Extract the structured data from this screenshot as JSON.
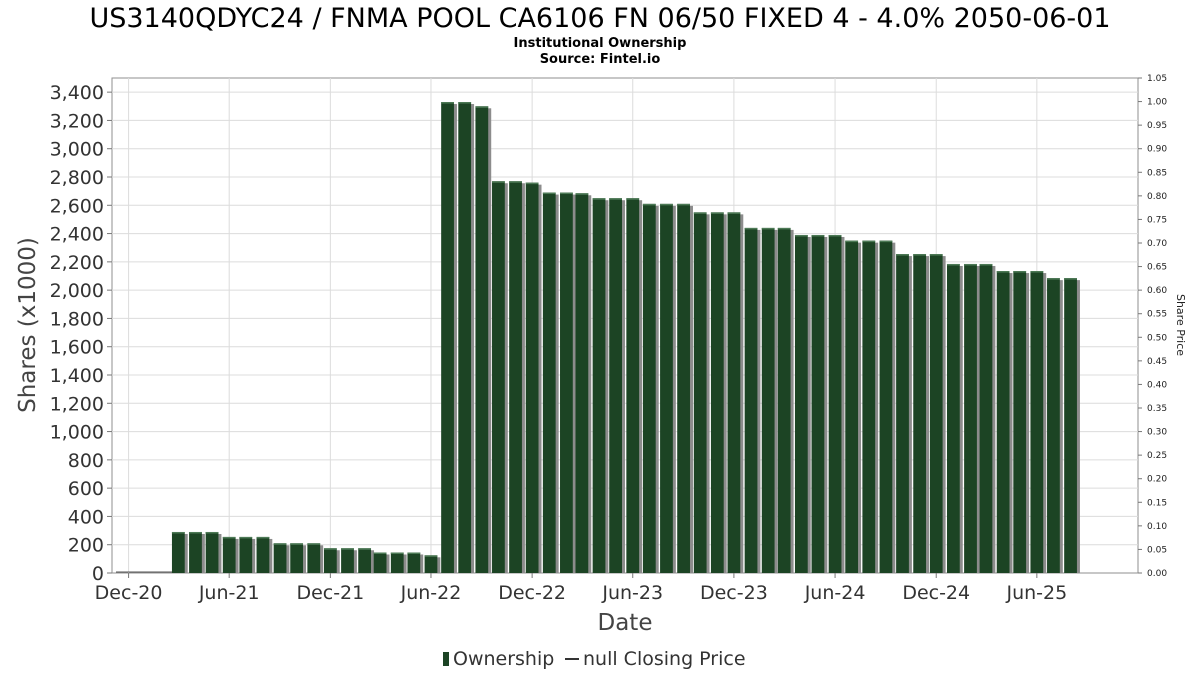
{
  "chart_data": {
    "type": "bar",
    "title": "US3140QDYC24 / FNMA POOL CA6106 FN 06/50 FIXED 4 - 4.0% 2050-06-01",
    "subtitle_lines": [
      "Institutional Ownership",
      "Source: Fintel.io"
    ],
    "xlabel": "Date",
    "ylabel": "Shares (x1000)",
    "y2label": "Share Price",
    "ylim": [
      0,
      3500
    ],
    "y2lim": [
      0,
      1.05
    ],
    "yticks": [
      0,
      200,
      400,
      600,
      800,
      1000,
      1200,
      1400,
      1600,
      1800,
      2000,
      2200,
      2400,
      2600,
      2800,
      3000,
      3200,
      3400
    ],
    "ytick_labels": [
      "0",
      "200",
      "400",
      "600",
      "800",
      "1,000",
      "1,200",
      "1,400",
      "1,600",
      "1,800",
      "2,000",
      "2,200",
      "2,400",
      "2,600",
      "2,800",
      "3,000",
      "3,200",
      "3,400"
    ],
    "y2ticks": [
      0.0,
      0.05,
      0.1,
      0.15,
      0.2,
      0.25,
      0.3,
      0.35,
      0.4,
      0.45,
      0.5,
      0.55,
      0.6,
      0.65,
      0.7,
      0.75,
      0.8,
      0.85,
      0.9,
      0.95,
      1.0,
      1.05
    ],
    "y2tick_labels": [
      "0.00",
      "0.05",
      "0.10",
      "0.15",
      "0.20",
      "0.25",
      "0.30",
      "0.35",
      "0.40",
      "0.45",
      "0.50",
      "0.55",
      "0.60",
      "0.65",
      "0.70",
      "0.75",
      "0.80",
      "0.85",
      "0.90",
      "0.95",
      "1.00",
      "1.05"
    ],
    "xlim": [
      "2020-11-01",
      "2025-12-01"
    ],
    "xticks": [
      "2020-12-01",
      "2021-06-01",
      "2021-12-01",
      "2022-06-01",
      "2022-12-01",
      "2023-06-01",
      "2023-12-01",
      "2024-06-01",
      "2024-12-01",
      "2025-06-01"
    ],
    "xtick_labels": [
      "Dec-20",
      "Jun-21",
      "Dec-21",
      "Jun-22",
      "Dec-22",
      "Jun-23",
      "Dec-23",
      "Jun-24",
      "Dec-24",
      "Jun-25"
    ],
    "grid": true,
    "legend_position": "bottom-center",
    "series": [
      {
        "name": "Ownership",
        "color": "#1c4424",
        "x": [
          "2021-03-01",
          "2021-04-01",
          "2021-05-01",
          "2021-06-01",
          "2021-07-01",
          "2021-08-01",
          "2021-09-01",
          "2021-10-01",
          "2021-11-01",
          "2021-12-01",
          "2022-01-01",
          "2022-02-01",
          "2022-03-01",
          "2022-04-01",
          "2022-05-01",
          "2022-06-01",
          "2022-07-01",
          "2022-08-01",
          "2022-09-01",
          "2022-10-01",
          "2022-11-01",
          "2022-12-01",
          "2023-01-01",
          "2023-02-01",
          "2023-03-01",
          "2023-04-01",
          "2023-05-01",
          "2023-06-01",
          "2023-07-01",
          "2023-08-01",
          "2023-09-01",
          "2023-10-01",
          "2023-11-01",
          "2023-12-01",
          "2024-01-01",
          "2024-02-01",
          "2024-03-01",
          "2024-04-01",
          "2024-05-01",
          "2024-06-01",
          "2024-07-01",
          "2024-08-01",
          "2024-09-01",
          "2024-10-01",
          "2024-11-01",
          "2024-12-01",
          "2025-01-01",
          "2025-02-01",
          "2025-03-01",
          "2025-04-01",
          "2025-05-01",
          "2025-06-01",
          "2025-07-01",
          "2025-08-01"
        ],
        "values": [
          290,
          290,
          290,
          255,
          255,
          255,
          210,
          210,
          210,
          175,
          175,
          175,
          145,
          145,
          145,
          125,
          3330,
          3330,
          3300,
          2770,
          2770,
          2760,
          2690,
          2690,
          2685,
          2650,
          2650,
          2650,
          2610,
          2610,
          2610,
          2550,
          2550,
          2550,
          2440,
          2440,
          2440,
          2390,
          2390,
          2390,
          2350,
          2350,
          2350,
          2255,
          2255,
          2255,
          2185,
          2185,
          2185,
          2135,
          2135,
          2135,
          2085,
          2085
        ]
      },
      {
        "name": "null Closing Price",
        "color": "#000000",
        "values": []
      }
    ]
  }
}
